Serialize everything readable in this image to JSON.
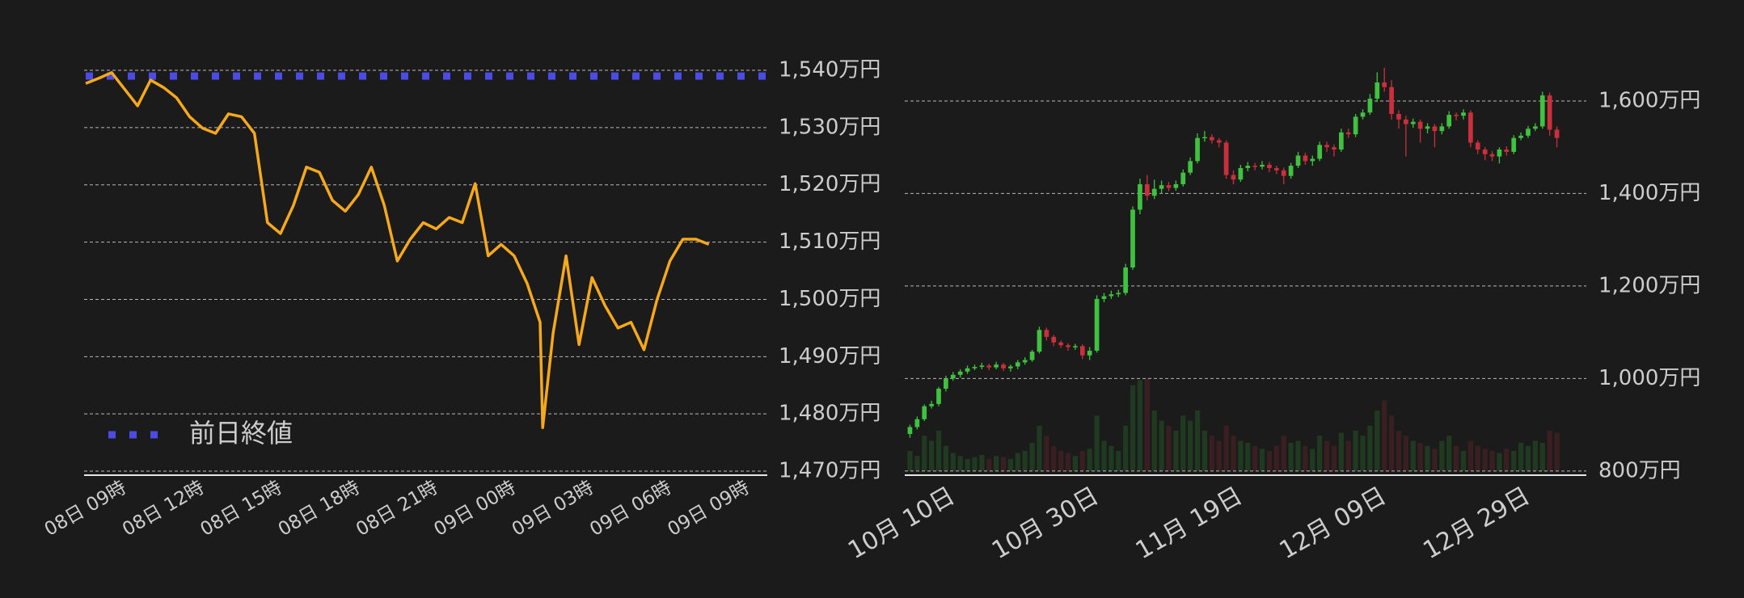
{
  "chart_data": [
    {
      "type": "line",
      "x": [
        0,
        0.5,
        1,
        1.5,
        2,
        2.5,
        3,
        3.5,
        4,
        4.5,
        5,
        5.5,
        6,
        6.5,
        7,
        7.5,
        8,
        8.5,
        9,
        9.5,
        10,
        10.5,
        11,
        11.5,
        12,
        12.5,
        13,
        13.5,
        14,
        14.5,
        15,
        15.5,
        16,
        16.5,
        17,
        17.5,
        17.6,
        18,
        18.5,
        19,
        19.5,
        20,
        20.5,
        21,
        21.5,
        22,
        22.5,
        23,
        23.5,
        24
      ],
      "series": [
        {
          "color": "#f7a81b",
          "values": [
            1537.7,
            1538.6,
            1539.6,
            1536.7,
            1533.8,
            1538.3,
            1537,
            1535.2,
            1531.9,
            1529.9,
            1529,
            1532.4,
            1531.9,
            1529,
            1513.4,
            1511.5,
            1516.4,
            1523.1,
            1522.2,
            1517.3,
            1515.4,
            1518.3,
            1523.1,
            1516.4,
            1506.7,
            1510.5,
            1513.4,
            1512.3,
            1514.3,
            1513.4,
            1520.2,
            1507.6,
            1509.6,
            1507.6,
            1502.8,
            1496,
            1477.6,
            1494.1,
            1507.6,
            1492.1,
            1503.8,
            1498.9,
            1495,
            1496,
            1491.2,
            1499.9,
            1506.7,
            1510.5,
            1510.5,
            1509.6
          ]
        }
      ],
      "reference_line": {
        "name": "前日終値",
        "value": 1539,
        "color": "#4b4be6"
      },
      "xlim": [
        0,
        26.25
      ],
      "xticks": [
        {
          "value": 0,
          "label": "08日 09時"
        },
        {
          "value": 3,
          "label": "08日 12時"
        },
        {
          "value": 6,
          "label": "08日 15時"
        },
        {
          "value": 9,
          "label": "08日 18時"
        },
        {
          "value": 12,
          "label": "08日 21時"
        },
        {
          "value": 15,
          "label": "09日 00時"
        },
        {
          "value": 18,
          "label": "09日 03時"
        },
        {
          "value": 21,
          "label": "09日 06時"
        },
        {
          "value": 24,
          "label": "09日 09時"
        }
      ],
      "ylim": [
        1469.3,
        1542.4
      ],
      "yticks": [
        {
          "value": 1470,
          "label": "1,470万円"
        },
        {
          "value": 1480,
          "label": "1,480万円"
        },
        {
          "value": 1490,
          "label": "1,490万円"
        },
        {
          "value": 1500,
          "label": "1,500万円"
        },
        {
          "value": 1510,
          "label": "1,510万円"
        },
        {
          "value": 1520,
          "label": "1,520万円"
        },
        {
          "value": 1530,
          "label": "1,530万円"
        },
        {
          "value": 1540,
          "label": "1,540万円"
        }
      ],
      "grid": true,
      "legend": "lower left"
    },
    {
      "type": "candlestick",
      "x": [
        "10月 04日",
        "10月 05日",
        "10月 06日",
        "10月 07日",
        "10月 08日",
        "10月 09日",
        "10月 10日",
        "10月 11日",
        "10月 12日",
        "10月 13日",
        "10月 14日",
        "10月 15日",
        "10月 16日",
        "10月 17日",
        "10月 18日",
        "10月 19日",
        "10月 20日",
        "10月 21日",
        "10月 22日",
        "10月 23日",
        "10月 24日",
        "10月 25日",
        "10月 26日",
        "10月 27日",
        "10月 28日",
        "10月 29日",
        "10月 30日",
        "10月 31日",
        "11月 01日",
        "11月 02日",
        "11月 03日",
        "11月 04日",
        "11月 05日",
        "11月 06日",
        "11月 07日",
        "11月 08日",
        "11月 09日",
        "11月 10日",
        "11月 11日",
        "11月 12日",
        "11月 13日",
        "11月 14日",
        "11月 15日",
        "11月 16日",
        "11月 17日",
        "11月 18日",
        "11月 19日",
        "11月 20日",
        "11月 21日",
        "11月 22日",
        "11月 23日",
        "11月 24日",
        "11月 25日",
        "11月 26日",
        "11月 27日",
        "11月 28日",
        "11月 29日",
        "11月 30日",
        "12月 01日",
        "12月 02日",
        "12月 03日",
        "12月 04日",
        "12月 05日",
        "12月 06日",
        "12月 07日",
        "12月 08日",
        "12月 09日",
        "12月 10日",
        "12月 11日",
        "12月 12日",
        "12月 13日",
        "12月 14日",
        "12月 15日",
        "12月 16日",
        "12月 17日",
        "12月 18日",
        "12月 19日",
        "12月 20日",
        "12月 21日",
        "12月 22日",
        "12月 23日",
        "12月 24日",
        "12月 25日",
        "12月 26日",
        "12月 27日",
        "12月 28日",
        "12月 29日",
        "12月 30日",
        "12月 31日",
        "01月 01日",
        "01月 02日"
      ],
      "open": [
        880,
        895,
        912,
        940,
        945,
        978,
        1000,
        1008,
        1015,
        1022,
        1025,
        1028,
        1024,
        1030,
        1022,
        1026,
        1035,
        1040,
        1058,
        1105,
        1090,
        1078,
        1072,
        1068,
        1070,
        1050,
        1060,
        1172,
        1178,
        1182,
        1185,
        1240,
        1365,
        1420,
        1395,
        1410,
        1418,
        1412,
        1420,
        1445,
        1470,
        1520,
        1522,
        1515,
        1510,
        1440,
        1430,
        1455,
        1460,
        1458,
        1462,
        1455,
        1450,
        1438,
        1460,
        1482,
        1470,
        1475,
        1505,
        1500,
        1495,
        1532,
        1528,
        1566,
        1575,
        1605,
        1640,
        1630,
        1572,
        1560,
        1550,
        1555,
        1540,
        1545,
        1535,
        1545,
        1570,
        1568,
        1575,
        1510,
        1495,
        1485,
        1480,
        1495,
        1490,
        1520,
        1525,
        1540,
        1545,
        1612,
        1538
      ],
      "high": [
        900,
        918,
        944,
        952,
        982,
        1006,
        1014,
        1020,
        1028,
        1030,
        1034,
        1032,
        1036,
        1034,
        1030,
        1040,
        1046,
        1062,
        1112,
        1110,
        1094,
        1082,
        1076,
        1075,
        1074,
        1068,
        1180,
        1185,
        1190,
        1192,
        1248,
        1372,
        1432,
        1440,
        1430,
        1428,
        1425,
        1428,
        1452,
        1478,
        1530,
        1535,
        1528,
        1520,
        1515,
        1450,
        1462,
        1468,
        1466,
        1470,
        1468,
        1460,
        1456,
        1466,
        1490,
        1488,
        1482,
        1512,
        1512,
        1506,
        1540,
        1540,
        1572,
        1582,
        1615,
        1662,
        1672,
        1645,
        1580,
        1568,
        1562,
        1560,
        1552,
        1550,
        1552,
        1578,
        1575,
        1582,
        1580,
        1515,
        1500,
        1492,
        1500,
        1502,
        1526,
        1532,
        1546,
        1552,
        1620,
        1618,
        1545
      ],
      "low": [
        872,
        890,
        908,
        935,
        940,
        972,
        995,
        1002,
        1010,
        1018,
        1020,
        1018,
        1020,
        1016,
        1015,
        1020,
        1030,
        1036,
        1054,
        1082,
        1070,
        1066,
        1060,
        1062,
        1042,
        1040,
        1056,
        1165,
        1172,
        1176,
        1180,
        1235,
        1355,
        1385,
        1388,
        1400,
        1405,
        1406,
        1415,
        1440,
        1465,
        1512,
        1508,
        1500,
        1432,
        1420,
        1425,
        1448,
        1450,
        1452,
        1446,
        1442,
        1420,
        1432,
        1455,
        1462,
        1460,
        1470,
        1490,
        1480,
        1490,
        1520,
        1522,
        1560,
        1570,
        1598,
        1620,
        1560,
        1540,
        1480,
        1542,
        1510,
        1530,
        1500,
        1528,
        1540,
        1558,
        1560,
        1500,
        1485,
        1472,
        1470,
        1465,
        1482,
        1485,
        1515,
        1520,
        1535,
        1540,
        1525,
        1500
      ],
      "close": [
        895,
        912,
        940,
        945,
        978,
        1000,
        1008,
        1015,
        1022,
        1025,
        1028,
        1024,
        1030,
        1022,
        1026,
        1035,
        1040,
        1058,
        1105,
        1090,
        1078,
        1072,
        1068,
        1070,
        1050,
        1060,
        1172,
        1178,
        1182,
        1185,
        1240,
        1365,
        1420,
        1395,
        1410,
        1418,
        1412,
        1420,
        1445,
        1470,
        1520,
        1522,
        1515,
        1510,
        1440,
        1430,
        1455,
        1460,
        1458,
        1462,
        1455,
        1450,
        1438,
        1460,
        1482,
        1470,
        1475,
        1505,
        1500,
        1495,
        1532,
        1528,
        1566,
        1575,
        1605,
        1640,
        1630,
        1572,
        1560,
        1550,
        1555,
        1540,
        1545,
        1535,
        1545,
        1570,
        1568,
        1575,
        1510,
        1495,
        1485,
        1480,
        1495,
        1490,
        1520,
        1525,
        1540,
        1545,
        1612,
        1538,
        1520
      ],
      "volume": [
        20,
        15,
        35,
        30,
        40,
        25,
        18,
        15,
        12,
        14,
        16,
        12,
        15,
        14,
        12,
        18,
        20,
        28,
        45,
        35,
        25,
        20,
        18,
        15,
        20,
        22,
        55,
        30,
        25,
        20,
        45,
        85,
        90,
        92,
        60,
        50,
        45,
        40,
        55,
        50,
        60,
        40,
        35,
        30,
        45,
        35,
        30,
        28,
        25,
        22,
        20,
        25,
        35,
        28,
        30,
        25,
        22,
        35,
        30,
        25,
        38,
        30,
        40,
        35,
        45,
        60,
        70,
        55,
        40,
        35,
        30,
        28,
        25,
        22,
        30,
        35,
        25,
        20,
        30,
        25,
        22,
        20,
        18,
        22,
        20,
        28,
        25,
        30,
        28,
        40,
        38
      ],
      "up_color": "#3fc23f",
      "down_color": "#cc2f3c",
      "xticks": [
        "10月 10日",
        "10月 30日",
        "11月 19日",
        "12月 09日",
        "12月 29日"
      ],
      "ylim": [
        791,
        1696
      ],
      "yticks": [
        {
          "value": 800,
          "label": "800万円"
        },
        {
          "value": 1000,
          "label": "1,000万円"
        },
        {
          "value": 1200,
          "label": "1,200万円"
        },
        {
          "value": 1400,
          "label": "1,400万円"
        },
        {
          "value": 1600,
          "label": "1,600万円"
        }
      ],
      "grid": true
    }
  ]
}
